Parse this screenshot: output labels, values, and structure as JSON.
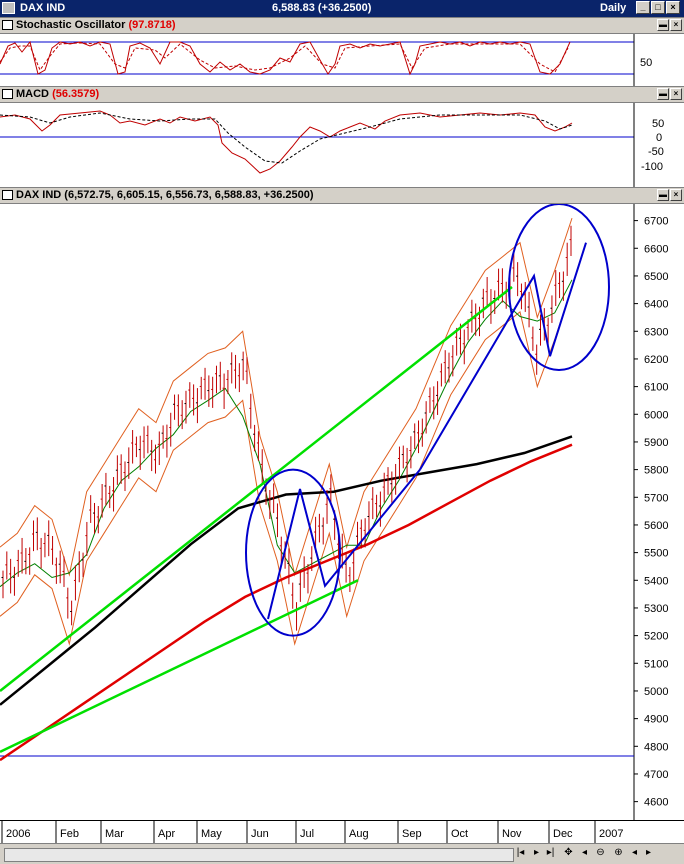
{
  "window": {
    "title": "DAX IND",
    "quote": "6,588.83 (+36.2500)",
    "period": "Daily",
    "colors": {
      "titlebar": "#0a246a"
    }
  },
  "panes": {
    "stochastic": {
      "name": "Stochastic Oscillator",
      "value": "(97.8718)",
      "axis_label": "50"
    },
    "macd": {
      "name": "MACD",
      "value": "(56.3579)",
      "axis_labels": [
        "50",
        "0",
        "-50",
        "-100"
      ]
    },
    "price": {
      "name": "DAX IND",
      "value": "(6,572.75, 6,605.15, 6,556.73, 6,588.83, +36.2500)"
    }
  },
  "icons": [
    "minimize-icon",
    "maximize-icon",
    "close-icon",
    "scroll-left-icon",
    "scroll-right-icon",
    "scroll-start-icon",
    "scroll-end-icon",
    "zoom-icon",
    "crosshair-icon"
  ],
  "chart_data": [
    {
      "type": "line",
      "pane": "price",
      "x_labels": [
        "2006",
        "Feb",
        "Mar",
        "Apr",
        "May",
        "Jun",
        "Jul",
        "Aug",
        "Sep",
        "Oct",
        "Nov",
        "Dec",
        "2007"
      ],
      "y_ticks": [
        4600,
        4700,
        4800,
        4900,
        5000,
        5100,
        5200,
        5300,
        5400,
        5500,
        5600,
        5700,
        5800,
        5900,
        6000,
        6100,
        6200,
        6300,
        6400,
        6500,
        6600,
        6700
      ],
      "ylim": [
        4530,
        6760
      ],
      "colors": {
        "price": "#c00000",
        "ma200": "#e00000",
        "ma_black": "#000000",
        "trend": "#00e000",
        "pattern": "#0000cc",
        "bollinger": "#e06020"
      },
      "series": [
        {
          "values": [
            5400,
            5450,
            5550,
            5500,
            5300,
            5600,
            5700,
            5800,
            5900,
            5850,
            6000,
            6050,
            6100,
            6120,
            6180,
            5800,
            5600,
            5300,
            5500,
            5700,
            5400,
            5600,
            5700,
            5800,
            5900,
            6050,
            6200,
            6300,
            6400,
            6450,
            6500,
            6230,
            6400,
            6589
          ]
        },
        {
          "values": [
            4750,
            4850,
            4950,
            5050,
            5150,
            5250,
            5340,
            5410,
            5470,
            5530,
            5600,
            5680,
            5760,
            5830,
            5890
          ]
        },
        {
          "values": [
            4950,
            5090,
            5230,
            5380,
            5530,
            5660,
            5710,
            5720,
            5760,
            5790,
            5820,
            5860,
            5920
          ]
        }
      ],
      "horizontal_line": 4765
    }
  ]
}
